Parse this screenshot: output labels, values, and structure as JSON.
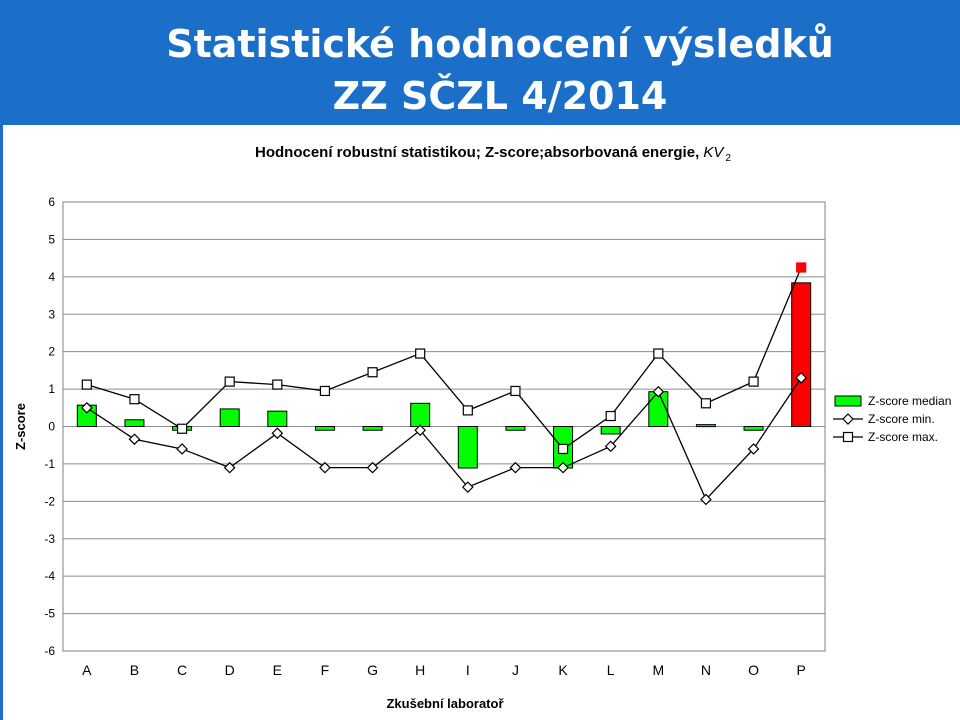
{
  "header": {
    "title_line1": "Statistické hodnocení výsledků",
    "title_line2": "ZZ SČZL 4/2014"
  },
  "chart_data": {
    "type": "bar",
    "title": "Hodnocení robustní statistikou; Z-score;absorbovaná energie, ",
    "title_italic": "KV",
    "title_subscript": "2",
    "xlabel": "Zkušební laboratoř",
    "ylabel": "Z-score",
    "ylim": [
      -6,
      6
    ],
    "yticks": [
      "6",
      "5",
      "4",
      "3",
      "2",
      "1",
      "0",
      "-1",
      "-2",
      "-3",
      "-4",
      "-5",
      "-6"
    ],
    "grid": true,
    "legend_position": "right",
    "categories": [
      "A",
      "B",
      "C",
      "D",
      "E",
      "F",
      "G",
      "H",
      "I",
      "J",
      "K",
      "L",
      "M",
      "N",
      "O",
      "P"
    ],
    "series": [
      {
        "name": "Z-score median",
        "kind": "bar",
        "color": "#00ff00",
        "highlight_color": "#ff0000",
        "highlight_index": 15,
        "values": [
          0.57,
          0.18,
          -0.1,
          0.47,
          0.41,
          -0.1,
          -0.1,
          0.62,
          -1.11,
          -0.1,
          -1.11,
          -0.2,
          0.93,
          0.05,
          -0.1,
          3.84
        ]
      },
      {
        "name": "Z-score min.",
        "kind": "line",
        "marker": "diamond",
        "color": "#000000",
        "values": [
          0.5,
          -0.34,
          -0.6,
          -1.1,
          -0.18,
          -1.1,
          -1.1,
          -0.1,
          -1.62,
          -1.1,
          -1.1,
          -0.53,
          0.93,
          -1.95,
          -0.6,
          1.3
        ]
      },
      {
        "name": "Z-score max.",
        "kind": "line",
        "marker": "square",
        "color": "#000000",
        "highlight_color": "#ff0000",
        "highlight_index": 15,
        "values": [
          1.12,
          0.73,
          -0.06,
          1.2,
          1.12,
          0.95,
          1.45,
          1.95,
          0.43,
          0.95,
          -0.6,
          0.28,
          1.95,
          0.62,
          1.2,
          4.25
        ]
      }
    ]
  }
}
